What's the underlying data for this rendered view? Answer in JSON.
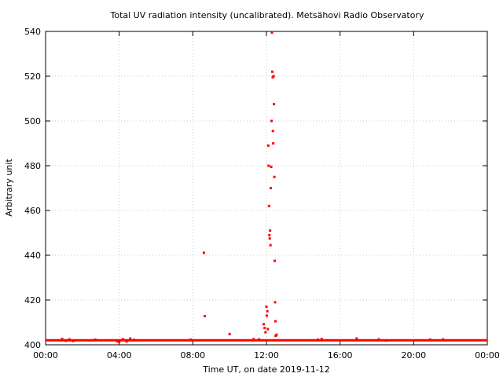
{
  "chart_data": {
    "type": "scatter",
    "title": "Total UV radiation intensity (uncalibrated). Metsähovi Radio Observatory",
    "xlabel": "Time UT, on date 2019-11-12",
    "ylabel": "Arbitrary unit",
    "xlim": [
      0,
      24
    ],
    "ylim": [
      400,
      540
    ],
    "x_ticks": [
      0,
      4,
      8,
      12,
      16,
      20,
      24
    ],
    "x_tick_labels": [
      "00:00",
      "04:00",
      "08:00",
      "12:00",
      "16:00",
      "20:00",
      "00:00"
    ],
    "y_ticks": [
      400,
      420,
      440,
      460,
      480,
      500,
      520,
      540
    ],
    "y_tick_labels": [
      "400",
      "420",
      "440",
      "460",
      "480",
      "500",
      "520",
      "540"
    ],
    "grid": true,
    "series_color": "#ff0000",
    "baseline": {
      "value": 402,
      "x_range": [
        0,
        24
      ]
    },
    "points": [
      [
        0.9,
        402.6
      ],
      [
        1.1,
        401.8
      ],
      [
        1.3,
        402.4
      ],
      [
        1.5,
        401.7
      ],
      [
        2.7,
        402.3
      ],
      [
        3.9,
        401.6
      ],
      [
        4.0,
        401.3
      ],
      [
        4.2,
        402.5
      ],
      [
        4.4,
        401.5
      ],
      [
        4.6,
        402.8
      ],
      [
        4.8,
        402.2
      ],
      [
        7.9,
        402.3
      ],
      [
        8.6,
        441.1
      ],
      [
        8.65,
        412.8
      ],
      [
        10.0,
        404.8
      ],
      [
        11.3,
        402.5
      ],
      [
        11.6,
        402.4
      ],
      [
        11.85,
        409.2
      ],
      [
        11.9,
        407.5
      ],
      [
        11.95,
        405.6
      ],
      [
        12.0,
        417.0
      ],
      [
        12.02,
        413.0
      ],
      [
        12.05,
        415.0
      ],
      [
        12.08,
        407.0
      ],
      [
        12.1,
        489.0
      ],
      [
        12.12,
        480.0
      ],
      [
        12.14,
        462.0
      ],
      [
        12.16,
        449.0
      ],
      [
        12.18,
        447.5
      ],
      [
        12.2,
        451.0
      ],
      [
        12.22,
        444.5
      ],
      [
        12.24,
        470.0
      ],
      [
        12.26,
        479.5
      ],
      [
        12.28,
        500.0
      ],
      [
        12.3,
        539.5
      ],
      [
        12.32,
        522.0
      ],
      [
        12.34,
        519.5
      ],
      [
        12.35,
        495.5
      ],
      [
        12.37,
        490.0
      ],
      [
        12.39,
        520.0
      ],
      [
        12.41,
        507.5
      ],
      [
        12.43,
        475.0
      ],
      [
        12.45,
        437.5
      ],
      [
        12.47,
        419.0
      ],
      [
        12.49,
        410.5
      ],
      [
        12.5,
        404.0
      ],
      [
        12.55,
        404.5
      ],
      [
        14.8,
        402.3
      ],
      [
        15.0,
        402.6
      ],
      [
        16.9,
        402.8
      ],
      [
        18.1,
        402.4
      ],
      [
        18.5,
        401.9
      ],
      [
        20.9,
        402.3
      ],
      [
        21.6,
        402.4
      ]
    ]
  }
}
